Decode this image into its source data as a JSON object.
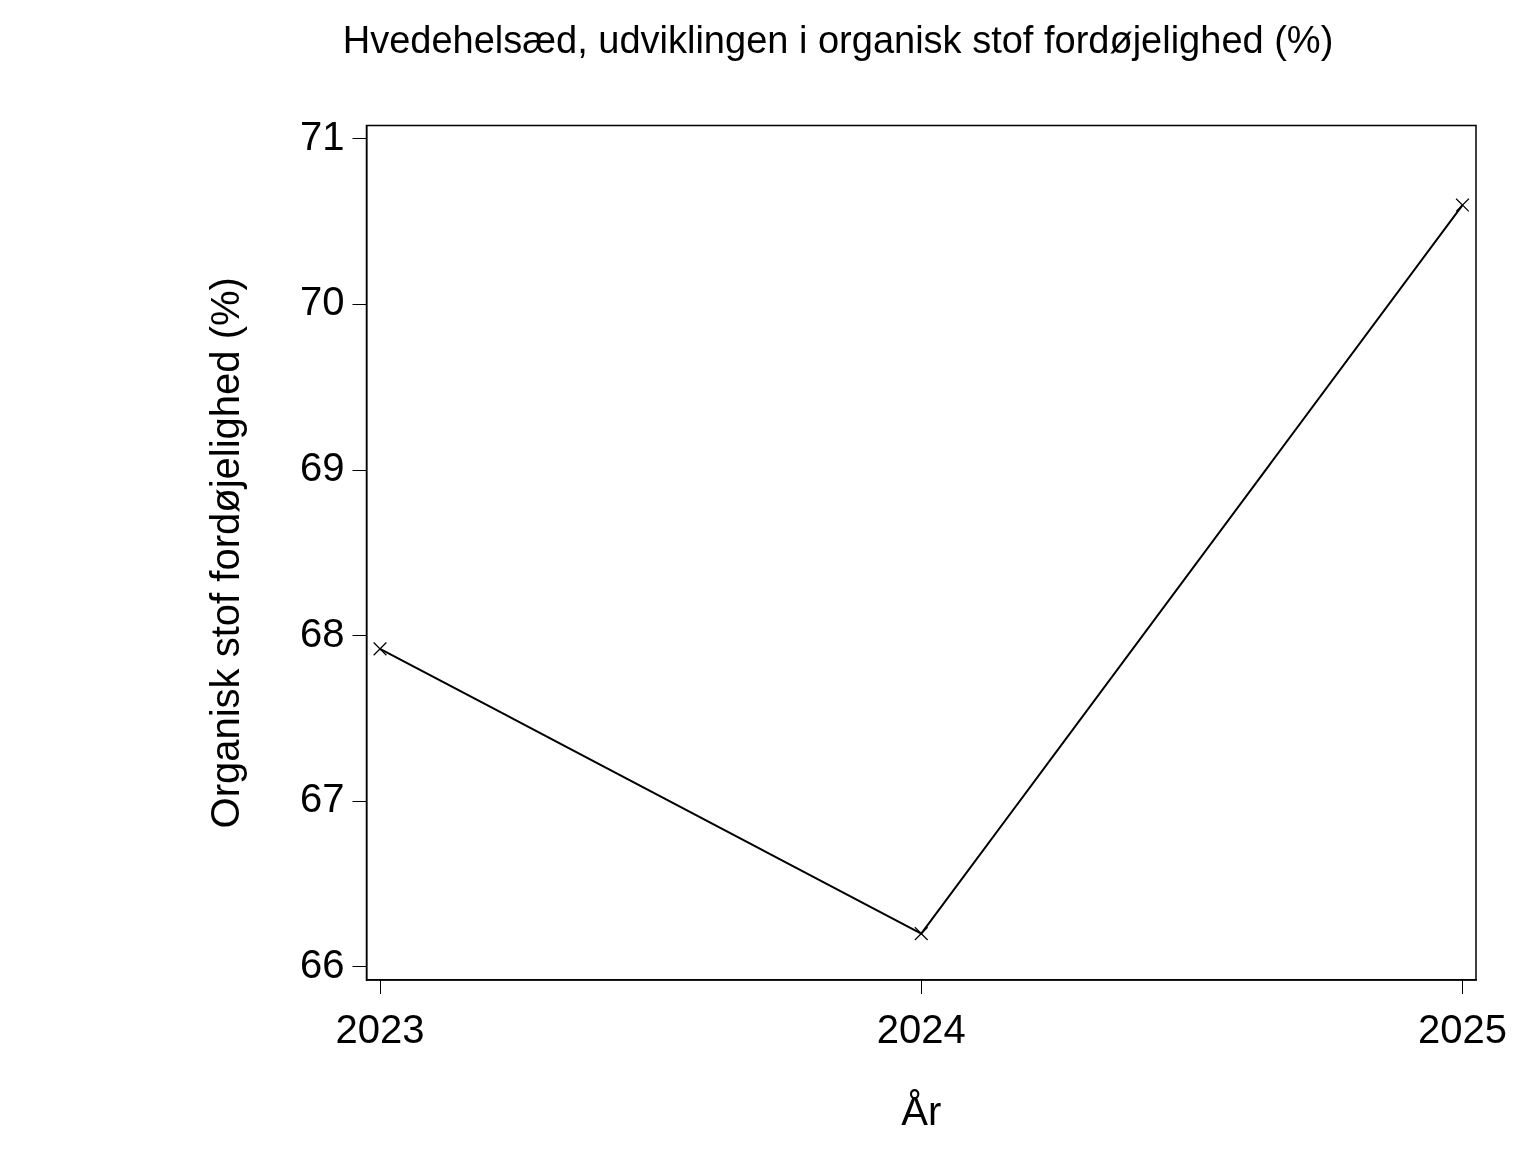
{
  "chart_data": {
    "type": "line",
    "title": "Hvedehelsæd, udviklingen i organisk stof fordøjelighed (%)",
    "xlabel": "År",
    "ylabel": "Organisk stof fordøjelighed (%)",
    "x": [
      2023,
      2024,
      2025
    ],
    "series": [
      {
        "color": "#000000",
        "values": [
          67.92,
          66.2,
          70.6
        ]
      }
    ],
    "xlim": [
      2022.975,
      2025.025
    ],
    "xticks": [
      2023,
      2024,
      2025
    ],
    "ylim": [
      65.92,
      71.08
    ],
    "yticks": [
      66,
      67,
      68,
      69,
      70,
      71
    ],
    "grid": false,
    "legend": false,
    "marker": "cross",
    "line_style": "solid"
  }
}
